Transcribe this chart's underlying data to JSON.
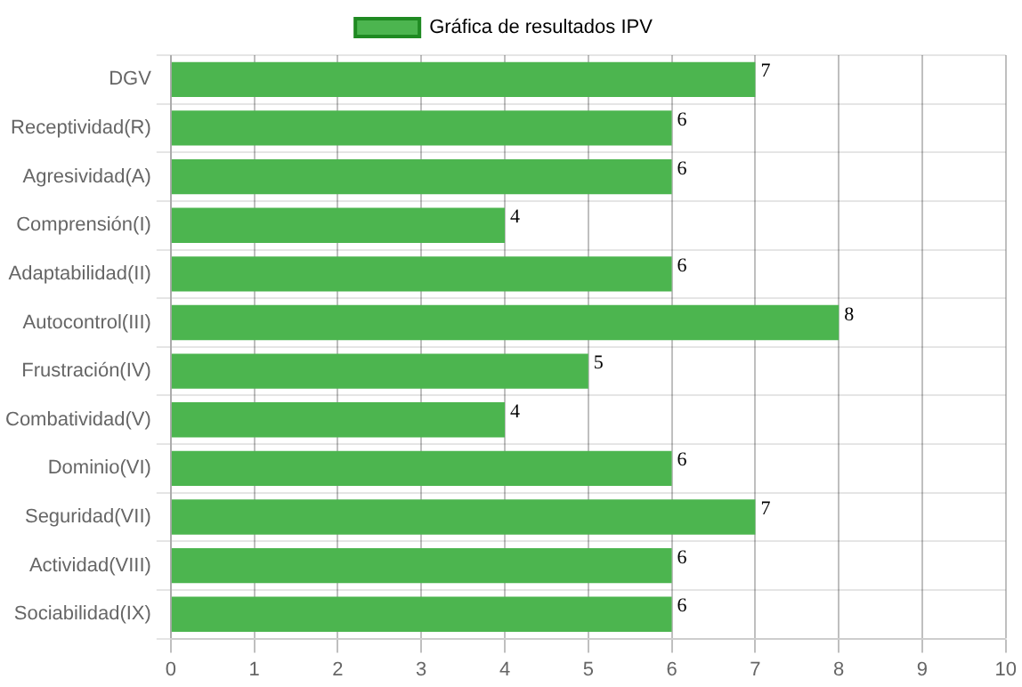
{
  "chart_data": {
    "type": "bar",
    "orientation": "horizontal",
    "legend": "top",
    "grid": true,
    "data_labels": true,
    "categories": [
      "DGV",
      "Receptividad(R)",
      "Agresividad(A)",
      "Comprensión(I)",
      "Adaptabilidad(II)",
      "Autocontrol(III)",
      "Frustración(IV)",
      "Combatividad(V)",
      "Dominio(VI)",
      "Seguridad(VII)",
      "Actividad(VIII)",
      "Sociabilidad(IX)"
    ],
    "series": [
      {
        "name": "Gráfica de resultados IPV",
        "color": "#4cb54f",
        "values": [
          7,
          6,
          6,
          4,
          6,
          8,
          5,
          4,
          6,
          7,
          6,
          6
        ]
      }
    ],
    "xlim": [
      0,
      10
    ],
    "xticks": [
      0,
      1,
      2,
      3,
      4,
      5,
      6,
      7,
      8,
      9,
      10
    ]
  }
}
